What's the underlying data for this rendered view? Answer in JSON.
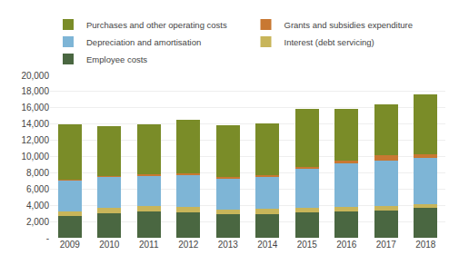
{
  "chart_data": {
    "type": "bar",
    "stacked": true,
    "categories": [
      "2009",
      "2010",
      "2011",
      "2012",
      "2013",
      "2014",
      "2015",
      "2016",
      "2017",
      "2018"
    ],
    "series": [
      {
        "name": "Employee costs",
        "color": "#4a6741",
        "values": [
          2700,
          3050,
          3200,
          3100,
          2900,
          2950,
          3100,
          3200,
          3400,
          3650
        ]
      },
      {
        "name": "Interest (debt servicing)",
        "color": "#c8b55a",
        "values": [
          550,
          650,
          700,
          650,
          550,
          600,
          550,
          550,
          550,
          500
        ]
      },
      {
        "name": "Depreciation and amortisation",
        "color": "#7eb5d6",
        "values": [
          3800,
          3800,
          3800,
          4000,
          3900,
          3950,
          4800,
          5400,
          5500,
          5700
        ]
      },
      {
        "name": "Grants and subsidies expenditure",
        "color": "#c87832",
        "values": [
          150,
          150,
          150,
          150,
          150,
          200,
          300,
          400,
          750,
          450
        ]
      },
      {
        "name": "Purchases and other operating costs",
        "color": "#7a8c28",
        "values": [
          6800,
          6100,
          6100,
          6600,
          6400,
          6400,
          7100,
          6350,
          6200,
          7300
        ]
      }
    ],
    "ylim": [
      0,
      20000
    ],
    "yticks": [
      {
        "value": 0,
        "label": "-"
      },
      {
        "value": 2000,
        "label": "2,000"
      },
      {
        "value": 4000,
        "label": "4,000"
      },
      {
        "value": 6000,
        "label": "6,000"
      },
      {
        "value": 8000,
        "label": "8,000"
      },
      {
        "value": 10000,
        "label": "10,000"
      },
      {
        "value": 12000,
        "label": "12,000"
      },
      {
        "value": 14000,
        "label": "14,000"
      },
      {
        "value": 16000,
        "label": "16,000"
      },
      {
        "value": 18000,
        "label": "18,000"
      },
      {
        "value": 20000,
        "label": "20,000"
      }
    ],
    "grid": true,
    "legend": "upper left"
  }
}
